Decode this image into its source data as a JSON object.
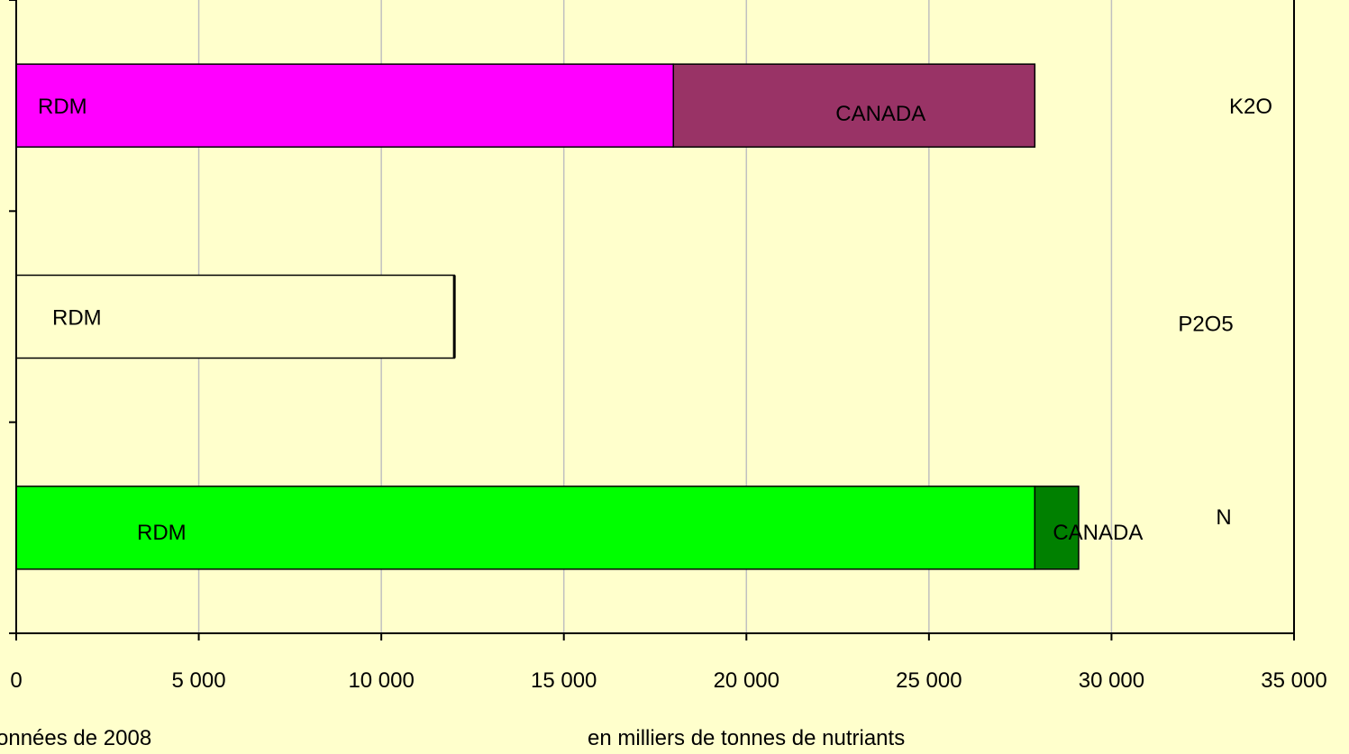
{
  "chart_data": {
    "type": "bar",
    "orientation": "horizontal",
    "stacked": true,
    "categories": [
      "K2O",
      "P2O5",
      "N"
    ],
    "series": [
      {
        "name": "RDM",
        "values": [
          18000,
          12000,
          27900
        ],
        "colors": [
          "#ff00ff",
          "#ffffcc",
          "#00ff00"
        ],
        "labels": [
          "RDM",
          "RDM",
          "RDM"
        ]
      },
      {
        "name": "CANADA",
        "values": [
          9900,
          0,
          1200
        ],
        "colors": [
          "#993366",
          "#ffffcc",
          "#008000"
        ],
        "labels": [
          "CANADA",
          "",
          "CANADA"
        ]
      }
    ],
    "xlim": [
      0,
      35000
    ],
    "xticks": [
      0,
      5000,
      10000,
      15000,
      20000,
      25000,
      30000,
      35000
    ],
    "xtick_labels": [
      "0",
      "5 000",
      "10 000",
      "15 000",
      "20 000",
      "25 000",
      "30 000",
      "35 000"
    ],
    "xlabel": "en milliers de tonnes de nutriants",
    "grid": true,
    "plot_background": "#ffffcc",
    "grid_color": "#c0c0c0"
  },
  "footnote": "onnées de 2008"
}
